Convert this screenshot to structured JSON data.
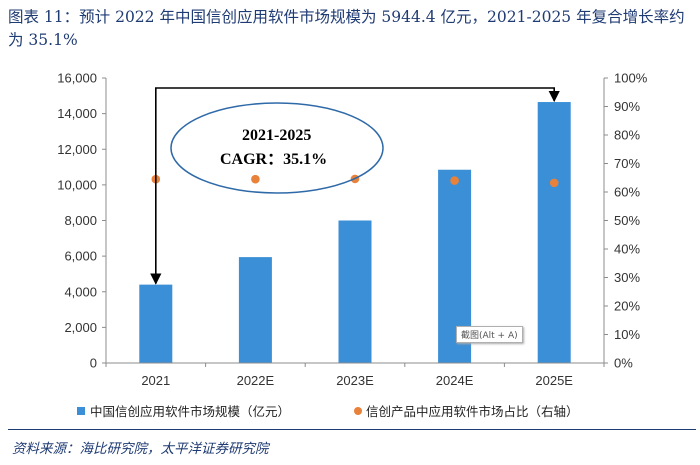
{
  "figure": {
    "title": "图表 11：预计 2022 年中国信创应用软件市场规模为 5944.4 亿元，2021-2025 年复合增长率约为 35.1%",
    "source": "资料来源：海比研究院，太平洋证券研究院"
  },
  "overlay": {
    "tooltip": "截图(Alt + A)"
  },
  "chart_data": {
    "type": "bar",
    "categories": [
      "2021",
      "2022E",
      "2023E",
      "2024E",
      "2025E"
    ],
    "series": [
      {
        "name": "中国信创应用软件市场规模（亿元）",
        "type": "bar",
        "axis": "left",
        "values": [
          4400,
          5944.4,
          8000,
          10850,
          14650
        ],
        "color": "#3a8fd6"
      },
      {
        "name": "信创产品中应用软件市场占比（右轴）",
        "type": "scatter",
        "axis": "right",
        "values": [
          0.645,
          0.645,
          0.646,
          0.64,
          0.632
        ],
        "color": "#e8823a"
      }
    ],
    "left_axis": {
      "min": 0,
      "max": 16000,
      "ticks": [
        "0",
        "2,000",
        "4,000",
        "6,000",
        "8,000",
        "10,000",
        "12,000",
        "14,000",
        "16,000"
      ]
    },
    "right_axis": {
      "min": 0,
      "max": 1,
      "ticks": [
        "0%",
        "10%",
        "20%",
        "30%",
        "40%",
        "50%",
        "60%",
        "70%",
        "80%",
        "90%",
        "100%"
      ]
    },
    "annotation": {
      "line1": "2021-2025",
      "line2": "CAGR：35.1%",
      "from": "2021",
      "to": "2025E"
    },
    "legend_position": "bottom"
  }
}
